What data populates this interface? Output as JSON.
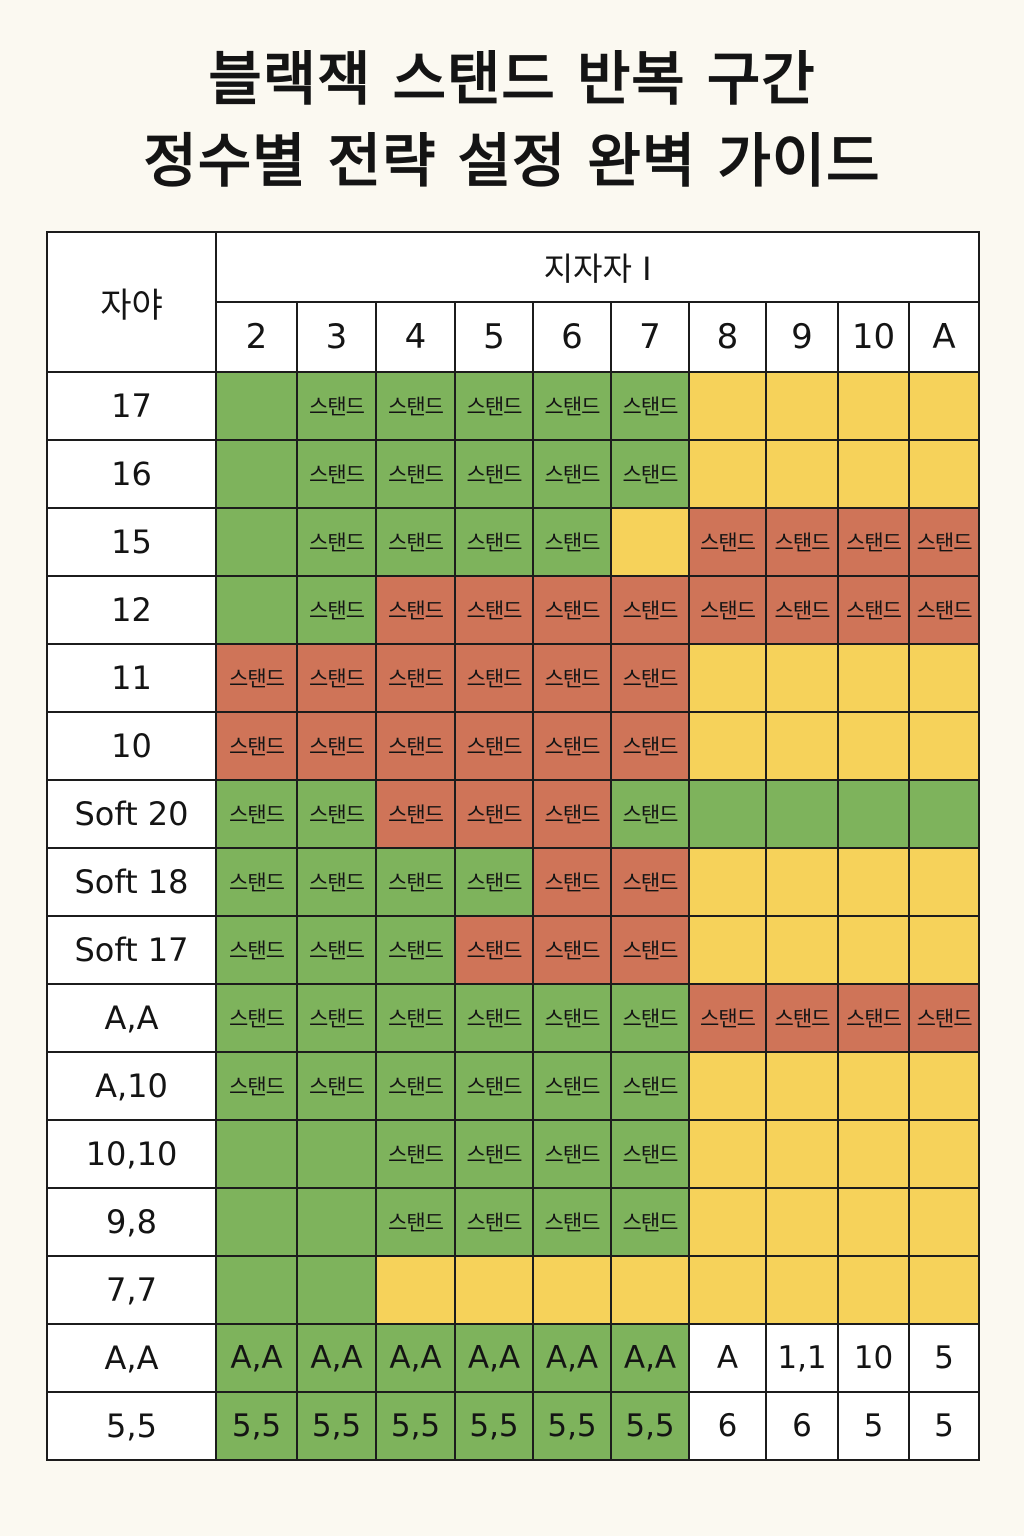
{
  "title": {
    "line1": "블랙잭 스탠드 반복 구간",
    "line2": "정수별 전략 설정 완벽 가이드"
  },
  "table": {
    "corner_label": "자야",
    "dealer_label": "지자자 I",
    "dealer_columns": [
      "2",
      "3",
      "4",
      "5",
      "6",
      "7",
      "8",
      "9",
      "10",
      "A"
    ],
    "colors": {
      "g": "#7eb35c",
      "y": "#f6d25a",
      "r": "#cf7458",
      "w": "#ffffff"
    },
    "rows": [
      {
        "label": "17",
        "cells": [
          {
            "c": "g",
            "t": ""
          },
          {
            "c": "g",
            "t": "스탠드"
          },
          {
            "c": "g",
            "t": "스탠드"
          },
          {
            "c": "g",
            "t": "스탠드"
          },
          {
            "c": "g",
            "t": "스탠드"
          },
          {
            "c": "g",
            "t": "스탠드"
          },
          {
            "c": "y",
            "t": ""
          },
          {
            "c": "y",
            "t": ""
          },
          {
            "c": "y",
            "t": ""
          },
          {
            "c": "y",
            "t": ""
          }
        ]
      },
      {
        "label": "16",
        "cells": [
          {
            "c": "g",
            "t": ""
          },
          {
            "c": "g",
            "t": "스탠드"
          },
          {
            "c": "g",
            "t": "스탠드"
          },
          {
            "c": "g",
            "t": "스탠드"
          },
          {
            "c": "g",
            "t": "스탠드"
          },
          {
            "c": "g",
            "t": "스탠드"
          },
          {
            "c": "y",
            "t": ""
          },
          {
            "c": "y",
            "t": ""
          },
          {
            "c": "y",
            "t": ""
          },
          {
            "c": "y",
            "t": ""
          }
        ]
      },
      {
        "label": "15",
        "cells": [
          {
            "c": "g",
            "t": ""
          },
          {
            "c": "g",
            "t": "스탠드"
          },
          {
            "c": "g",
            "t": "스탠드"
          },
          {
            "c": "g",
            "t": "스탠드"
          },
          {
            "c": "g",
            "t": "스탠드"
          },
          {
            "c": "y",
            "t": ""
          },
          {
            "c": "r",
            "t": "스탠드"
          },
          {
            "c": "r",
            "t": "스탠드"
          },
          {
            "c": "r",
            "t": "스탠드"
          },
          {
            "c": "r",
            "t": "스탠드"
          }
        ]
      },
      {
        "label": "12",
        "cells": [
          {
            "c": "g",
            "t": ""
          },
          {
            "c": "g",
            "t": "스탠드"
          },
          {
            "c": "r",
            "t": "스탠드"
          },
          {
            "c": "r",
            "t": "스탠드"
          },
          {
            "c": "r",
            "t": "스탠드"
          },
          {
            "c": "r",
            "t": "스탠드"
          },
          {
            "c": "r",
            "t": "스탠드"
          },
          {
            "c": "r",
            "t": "스탠드"
          },
          {
            "c": "r",
            "t": "스탠드"
          },
          {
            "c": "r",
            "t": "스탠드"
          }
        ]
      },
      {
        "label": "11",
        "cells": [
          {
            "c": "r",
            "t": "스탠드"
          },
          {
            "c": "r",
            "t": "스탠드"
          },
          {
            "c": "r",
            "t": "스탠드"
          },
          {
            "c": "r",
            "t": "스탠드"
          },
          {
            "c": "r",
            "t": "스탠드"
          },
          {
            "c": "r",
            "t": "스탠드"
          },
          {
            "c": "y",
            "t": ""
          },
          {
            "c": "y",
            "t": ""
          },
          {
            "c": "y",
            "t": ""
          },
          {
            "c": "y",
            "t": ""
          }
        ]
      },
      {
        "label": "10",
        "cells": [
          {
            "c": "r",
            "t": "스탠드"
          },
          {
            "c": "r",
            "t": "스탠드"
          },
          {
            "c": "r",
            "t": "스탠드"
          },
          {
            "c": "r",
            "t": "스탠드"
          },
          {
            "c": "r",
            "t": "스탠드"
          },
          {
            "c": "r",
            "t": "스탠드"
          },
          {
            "c": "y",
            "t": ""
          },
          {
            "c": "y",
            "t": ""
          },
          {
            "c": "y",
            "t": ""
          },
          {
            "c": "y",
            "t": ""
          }
        ]
      },
      {
        "label": "Soft 20",
        "cells": [
          {
            "c": "g",
            "t": "스탠드"
          },
          {
            "c": "g",
            "t": "스탠드"
          },
          {
            "c": "r",
            "t": "스탠드"
          },
          {
            "c": "r",
            "t": "스탠드"
          },
          {
            "c": "r",
            "t": "스탠드"
          },
          {
            "c": "g",
            "t": "스탠드"
          },
          {
            "c": "g",
            "t": ""
          },
          {
            "c": "g",
            "t": ""
          },
          {
            "c": "g",
            "t": ""
          },
          {
            "c": "g",
            "t": ""
          }
        ]
      },
      {
        "label": "Soft 18",
        "cells": [
          {
            "c": "g",
            "t": "스탠드"
          },
          {
            "c": "g",
            "t": "스탠드"
          },
          {
            "c": "g",
            "t": "스탠드"
          },
          {
            "c": "g",
            "t": "스탠드"
          },
          {
            "c": "r",
            "t": "스탠드"
          },
          {
            "c": "r",
            "t": "스탠드"
          },
          {
            "c": "y",
            "t": ""
          },
          {
            "c": "y",
            "t": ""
          },
          {
            "c": "y",
            "t": ""
          },
          {
            "c": "y",
            "t": ""
          }
        ]
      },
      {
        "label": "Soft 17",
        "cells": [
          {
            "c": "g",
            "t": "스탠드"
          },
          {
            "c": "g",
            "t": "스탠드"
          },
          {
            "c": "g",
            "t": "스탠드"
          },
          {
            "c": "r",
            "t": "스탠드"
          },
          {
            "c": "r",
            "t": "스탠드"
          },
          {
            "c": "r",
            "t": "스탠드"
          },
          {
            "c": "y",
            "t": ""
          },
          {
            "c": "y",
            "t": ""
          },
          {
            "c": "y",
            "t": ""
          },
          {
            "c": "y",
            "t": ""
          }
        ]
      },
      {
        "label": "A,A",
        "cells": [
          {
            "c": "g",
            "t": "스탠드"
          },
          {
            "c": "g",
            "t": "스탠드"
          },
          {
            "c": "g",
            "t": "스탠드"
          },
          {
            "c": "g",
            "t": "스탠드"
          },
          {
            "c": "g",
            "t": "스탠드"
          },
          {
            "c": "g",
            "t": "스탠드"
          },
          {
            "c": "r",
            "t": "스탠드"
          },
          {
            "c": "r",
            "t": "스탠드"
          },
          {
            "c": "r",
            "t": "스탠드"
          },
          {
            "c": "r",
            "t": "스탠드"
          }
        ]
      },
      {
        "label": "A,10",
        "cells": [
          {
            "c": "g",
            "t": "스탠드"
          },
          {
            "c": "g",
            "t": "스탠드"
          },
          {
            "c": "g",
            "t": "스탠드"
          },
          {
            "c": "g",
            "t": "스탠드"
          },
          {
            "c": "g",
            "t": "스탠드"
          },
          {
            "c": "g",
            "t": "스탠드"
          },
          {
            "c": "y",
            "t": ""
          },
          {
            "c": "y",
            "t": ""
          },
          {
            "c": "y",
            "t": ""
          },
          {
            "c": "y",
            "t": ""
          }
        ]
      },
      {
        "label": "10,10",
        "cells": [
          {
            "c": "g",
            "t": ""
          },
          {
            "c": "g",
            "t": ""
          },
          {
            "c": "g",
            "t": "스탠드"
          },
          {
            "c": "g",
            "t": "스탠드"
          },
          {
            "c": "g",
            "t": "스탠드"
          },
          {
            "c": "g",
            "t": "스탠드"
          },
          {
            "c": "y",
            "t": ""
          },
          {
            "c": "y",
            "t": ""
          },
          {
            "c": "y",
            "t": ""
          },
          {
            "c": "y",
            "t": ""
          }
        ]
      },
      {
        "label": "9,8",
        "cells": [
          {
            "c": "g",
            "t": ""
          },
          {
            "c": "g",
            "t": ""
          },
          {
            "c": "g",
            "t": "스탠드"
          },
          {
            "c": "g",
            "t": "스탠드"
          },
          {
            "c": "g",
            "t": "스탠드"
          },
          {
            "c": "g",
            "t": "스탠드"
          },
          {
            "c": "y",
            "t": ""
          },
          {
            "c": "y",
            "t": ""
          },
          {
            "c": "y",
            "t": ""
          },
          {
            "c": "y",
            "t": ""
          }
        ]
      },
      {
        "label": "7,7",
        "cells": [
          {
            "c": "g",
            "t": ""
          },
          {
            "c": "g",
            "t": ""
          },
          {
            "c": "y",
            "t": ""
          },
          {
            "c": "y",
            "t": ""
          },
          {
            "c": "y",
            "t": ""
          },
          {
            "c": "y",
            "t": ""
          },
          {
            "c": "y",
            "t": ""
          },
          {
            "c": "y",
            "t": ""
          },
          {
            "c": "y",
            "t": ""
          },
          {
            "c": "y",
            "t": ""
          }
        ]
      },
      {
        "label": "A,A",
        "cells": [
          {
            "c": "g",
            "t": "A,A",
            "v": 1
          },
          {
            "c": "g",
            "t": "A,A",
            "v": 1
          },
          {
            "c": "g",
            "t": "A,A",
            "v": 1
          },
          {
            "c": "g",
            "t": "A,A",
            "v": 1
          },
          {
            "c": "g",
            "t": "A,A",
            "v": 1
          },
          {
            "c": "g",
            "t": "A,A",
            "v": 1
          },
          {
            "c": "w",
            "t": "A",
            "v": 1
          },
          {
            "c": "w",
            "t": "1,1",
            "v": 1
          },
          {
            "c": "w",
            "t": "10",
            "v": 1
          },
          {
            "c": "w",
            "t": "5",
            "v": 1
          }
        ]
      },
      {
        "label": "5,5",
        "cells": [
          {
            "c": "g",
            "t": "5,5",
            "v": 1
          },
          {
            "c": "g",
            "t": "5,5",
            "v": 1
          },
          {
            "c": "g",
            "t": "5,5",
            "v": 1
          },
          {
            "c": "g",
            "t": "5,5",
            "v": 1
          },
          {
            "c": "g",
            "t": "5,5",
            "v": 1
          },
          {
            "c": "g",
            "t": "5,5",
            "v": 1
          },
          {
            "c": "w",
            "t": "6",
            "v": 1
          },
          {
            "c": "w",
            "t": "6",
            "v": 1
          },
          {
            "c": "w",
            "t": "5",
            "v": 1
          },
          {
            "c": "w",
            "t": "5",
            "v": 1
          }
        ]
      }
    ]
  }
}
